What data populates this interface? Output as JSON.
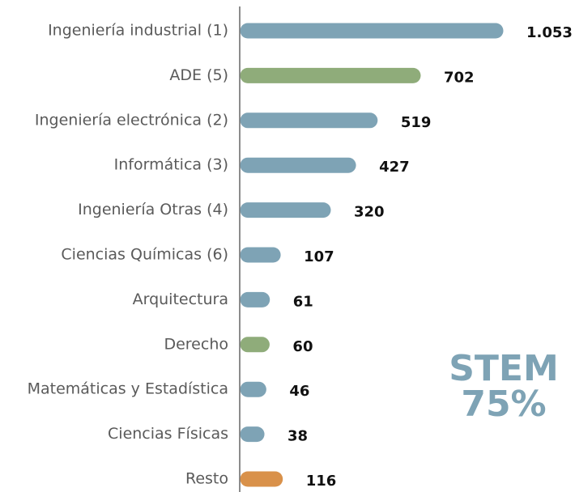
{
  "chart_data": {
    "type": "bar",
    "orientation": "horizontal",
    "categories": [
      "Ingeniería industrial (1)",
      "ADE (5)",
      "Ingeniería electrónica (2)",
      "Informática (3)",
      "Ingeniería Otras (4)",
      "Ciencias Químicas (6)",
      "Arquitectura",
      "Derecho",
      "Matemáticas y Estadística",
      "Ciencias Físicas",
      "Resto"
    ],
    "values": [
      1053,
      702,
      519,
      427,
      320,
      107,
      61,
      60,
      46,
      38,
      116
    ],
    "value_labels": [
      "1.053",
      "702",
      "519",
      "427",
      "320",
      "107",
      "61",
      "60",
      "46",
      "38",
      "116"
    ],
    "colors": [
      "#7ea3b5",
      "#8fac7a",
      "#7ea3b5",
      "#7ea3b5",
      "#7ea3b5",
      "#7ea3b5",
      "#7ea3b5",
      "#8fac7a",
      "#7ea3b5",
      "#7ea3b5",
      "#d9914a"
    ],
    "annotations": [
      "STEM",
      "75%"
    ]
  }
}
